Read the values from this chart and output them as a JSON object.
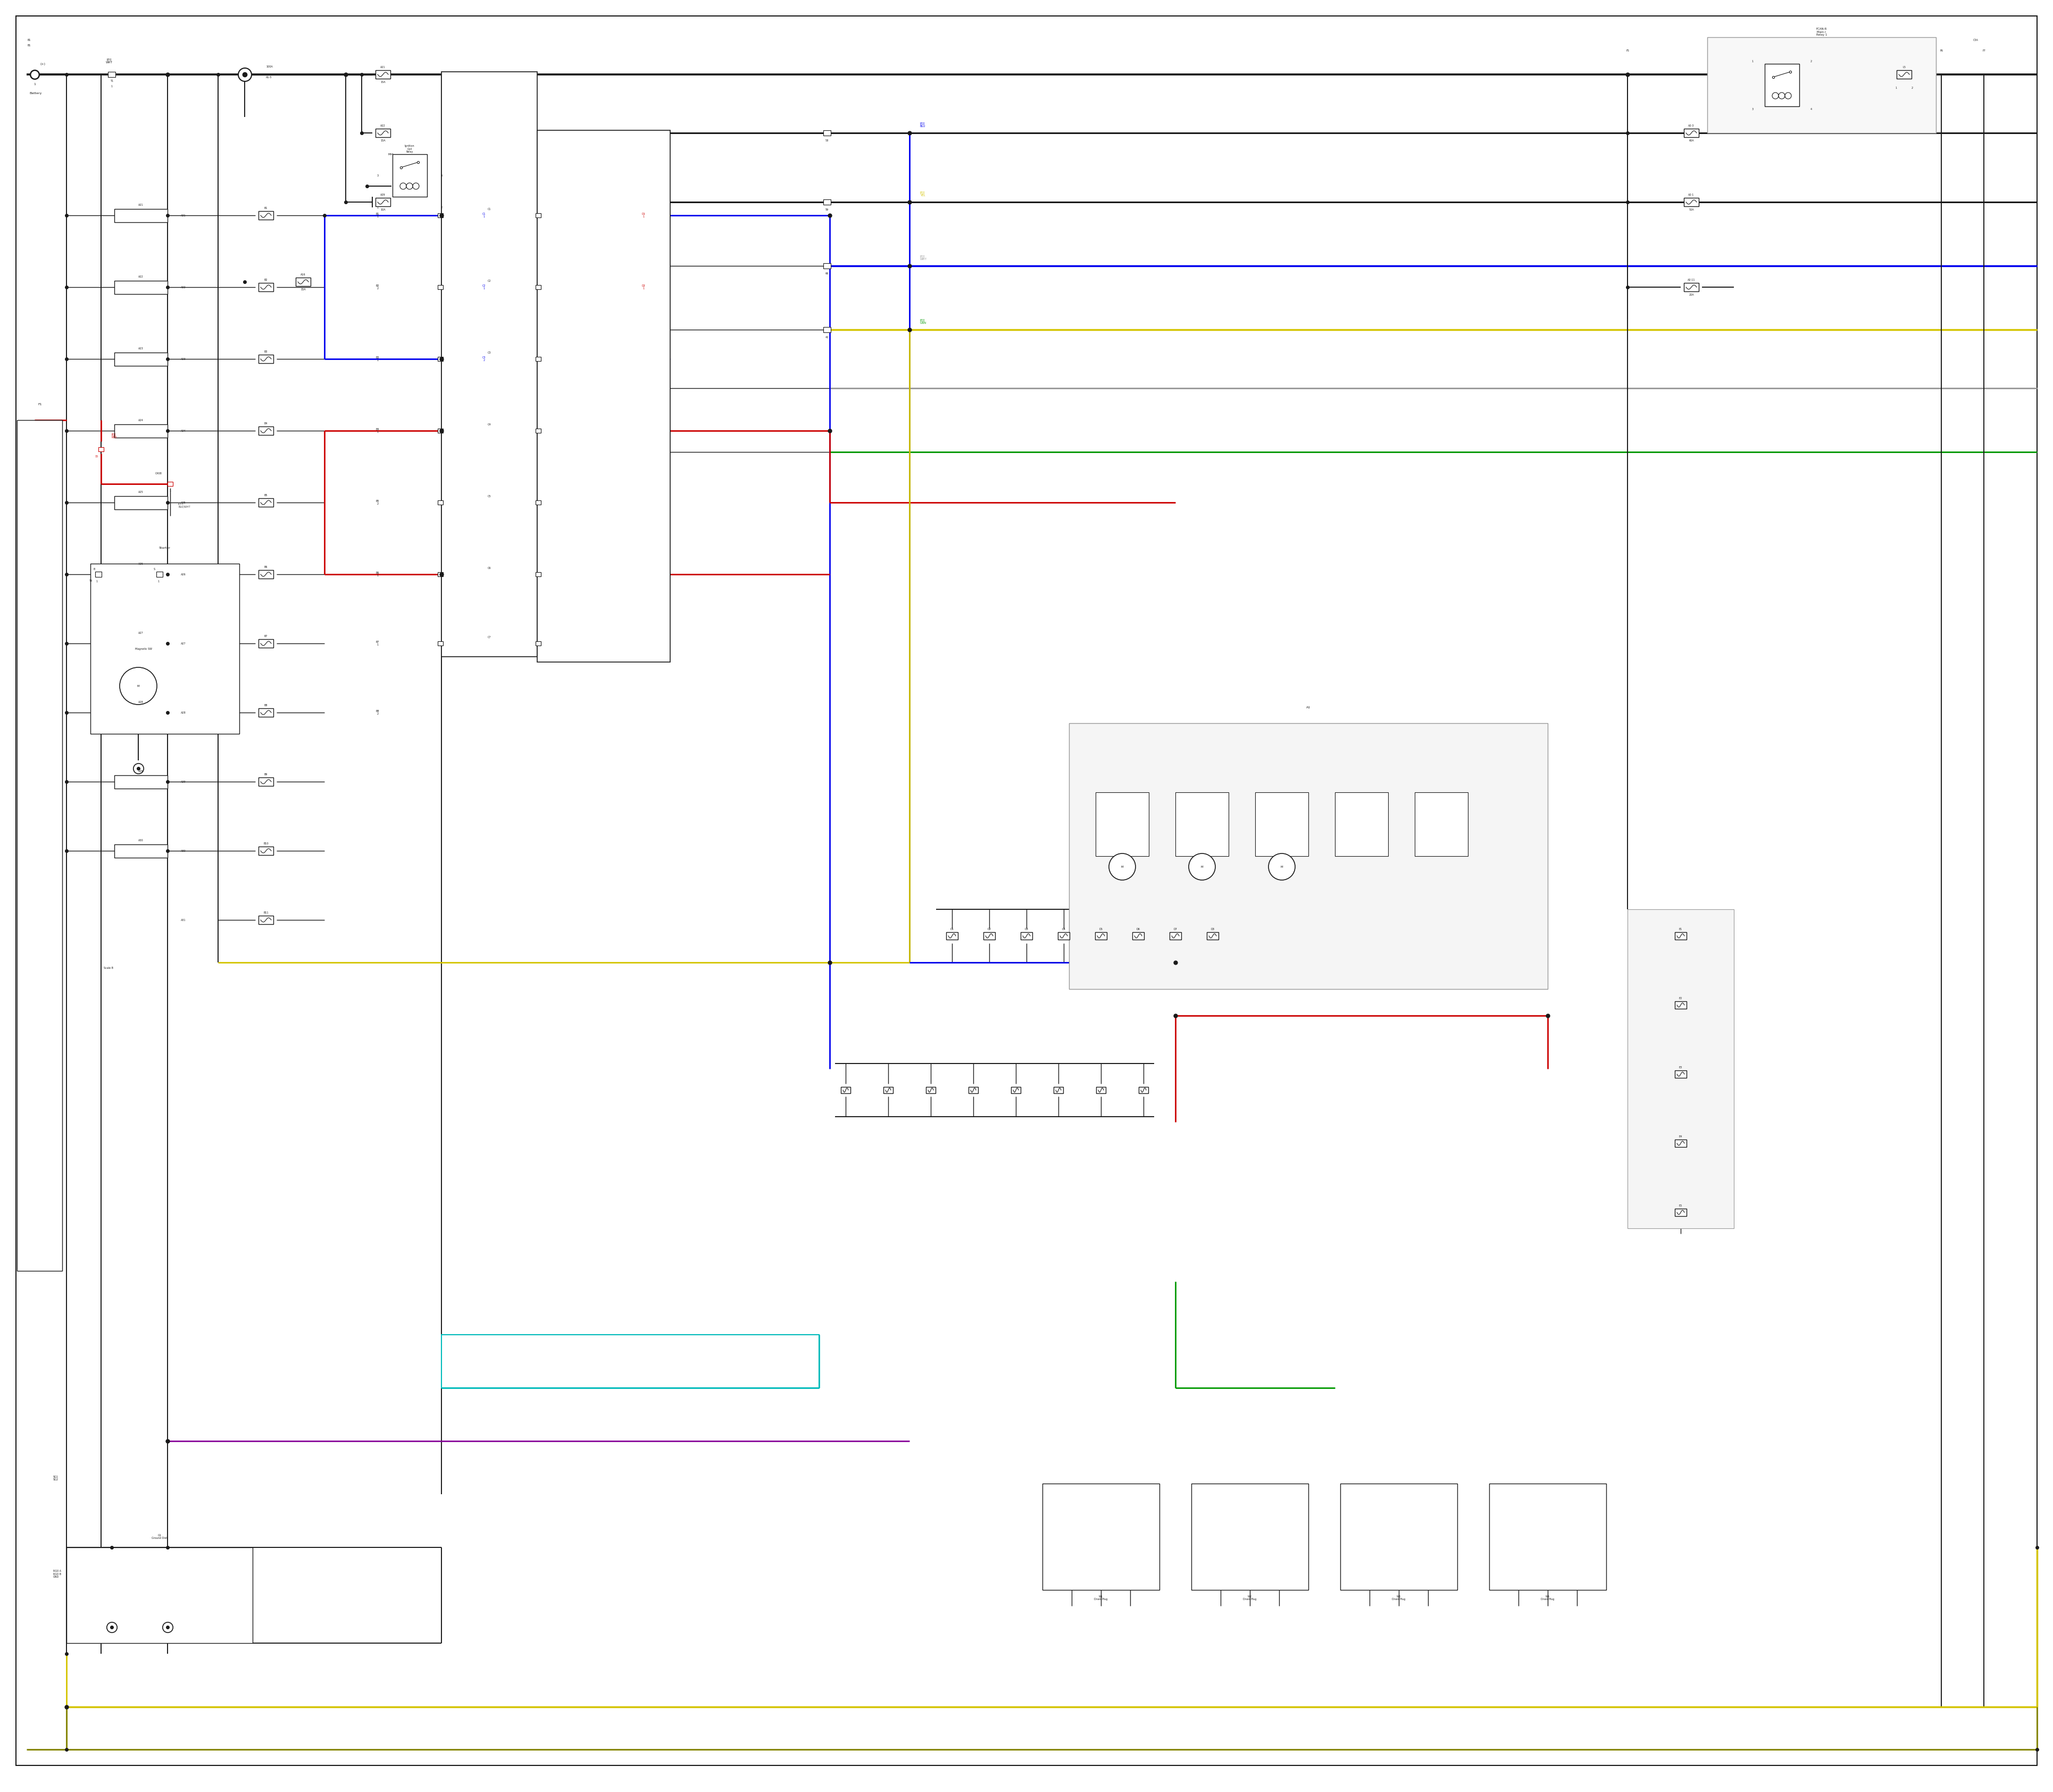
{
  "bg_color": "#ffffff",
  "fig_width": 38.4,
  "fig_height": 33.5,
  "colors": {
    "black": "#1a1a1a",
    "blue": "#0000ee",
    "red": "#cc0000",
    "yellow": "#d4c400",
    "cyan": "#00bbbb",
    "green": "#009900",
    "purple": "#880099",
    "gray": "#888888",
    "dark_gray": "#444444",
    "olive": "#888800",
    "light_gray": "#aaaaaa",
    "mid_gray": "#999999"
  },
  "lw": {
    "main": 1.4,
    "thick": 2.2,
    "color": 2.0,
    "thin": 1.0,
    "fuse": 1.0
  },
  "fs": {
    "label": 5.5,
    "small": 4.5,
    "tiny": 4.0,
    "micro": 3.5
  }
}
